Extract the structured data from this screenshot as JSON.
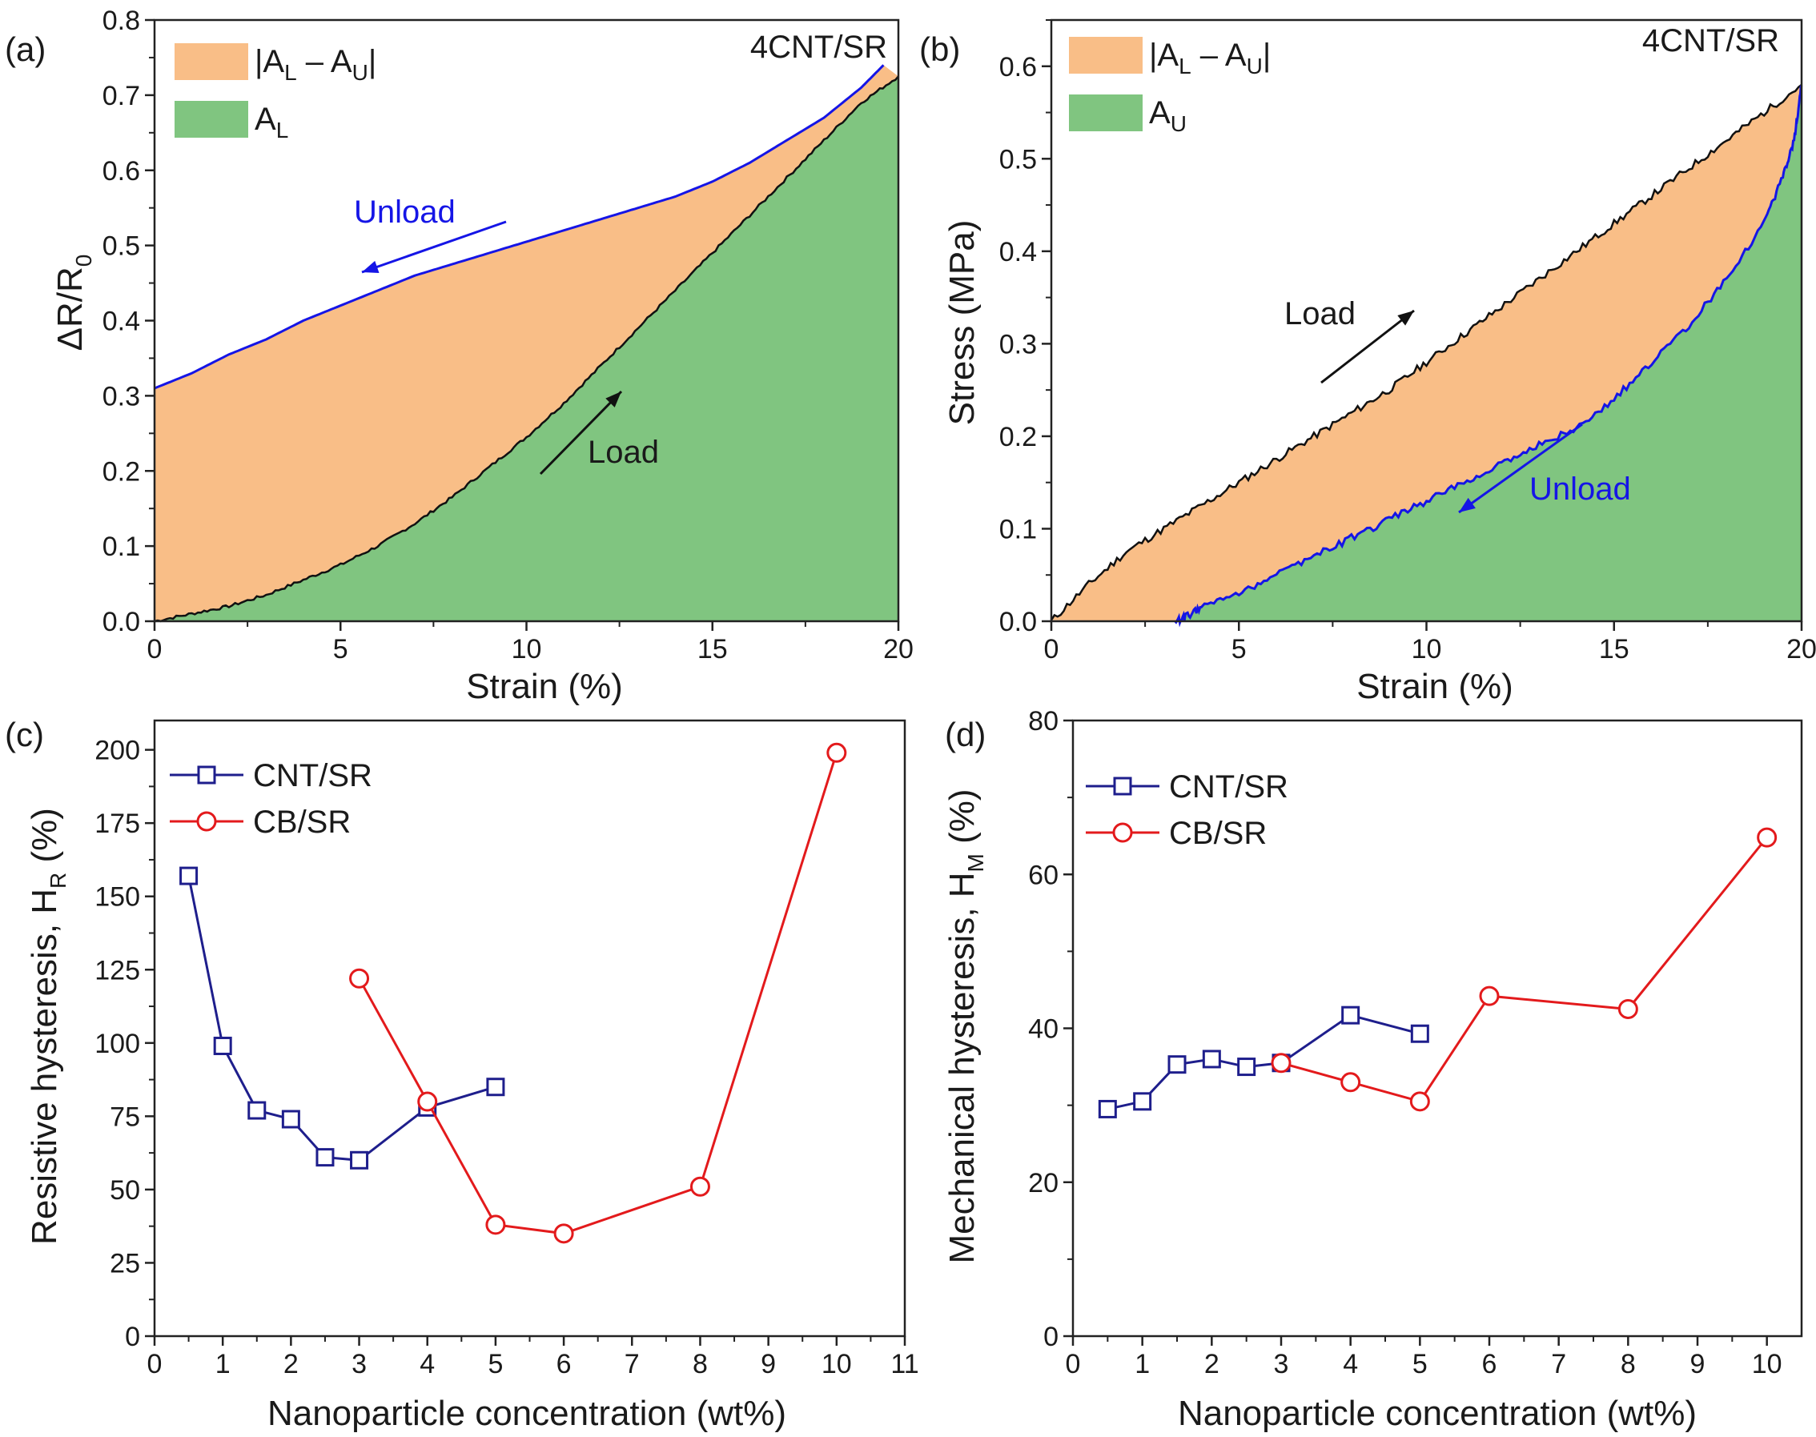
{
  "panels": [
    {
      "id": "a",
      "panel_label": "(a)",
      "sample": "4CNT/SR",
      "legend": [
        {
          "label_main": "|A",
          "label_sub1": "L",
          "label_mid": " – A",
          "label_sub2": "U",
          "label_end": "|",
          "color": "#F9BE87"
        },
        {
          "label_main": "A",
          "label_sub1": "L",
          "color": "#80C580"
        }
      ],
      "annotations": {
        "unload": "Unload",
        "load": "Load",
        "unload_color": "#1515E6",
        "load_color": "#111111"
      },
      "ylabel_main": "ΔR/R",
      "ylabel_sub": "0"
    },
    {
      "id": "b",
      "panel_label": "(b)",
      "sample": "4CNT/SR",
      "legend": [
        {
          "label_main": "|A",
          "label_sub1": "L",
          "label_mid": " – A",
          "label_sub2": "U",
          "label_end": "|",
          "color": "#F9BE87"
        },
        {
          "label_main": "A",
          "label_sub1": "U",
          "color": "#80C580"
        }
      ],
      "annotations": {
        "unload": "Unload",
        "load": "Load",
        "unload_color": "#1515E6",
        "load_color": "#111111"
      },
      "ylabel": "Stress (MPa)"
    },
    {
      "id": "c",
      "panel_label": "(c)",
      "ylabel_main": "Resistive hysteresis, H",
      "ylabel_sub": "R",
      "ylabel_end": " (%)"
    },
    {
      "id": "d",
      "panel_label": "(d)",
      "ylabel_main": "Mechanical hysteresis, H",
      "ylabel_sub": "M",
      "ylabel_end": " (%)"
    }
  ],
  "chart_data": [
    {
      "type": "area",
      "title": "(a) 4CNT/SR",
      "xlabel": "Strain (%)",
      "ylabel": "ΔR/R0",
      "xlim": [
        0,
        20
      ],
      "ylim": [
        0,
        0.8
      ],
      "xticks": [
        0,
        5,
        10,
        15,
        20
      ],
      "yticks": [
        0.0,
        0.1,
        0.2,
        0.3,
        0.4,
        0.5,
        0.6,
        0.7,
        0.8
      ],
      "series": [
        {
          "name": "Load",
          "color": "#111111",
          "x": [
            0,
            1,
            2,
            3,
            4,
            5,
            6,
            7,
            8,
            9,
            10,
            11,
            12,
            13,
            14,
            15,
            16,
            17,
            18,
            19,
            20
          ],
          "y": [
            0,
            0.01,
            0.02,
            0.035,
            0.055,
            0.075,
            0.1,
            0.13,
            0.165,
            0.205,
            0.245,
            0.29,
            0.34,
            0.39,
            0.44,
            0.49,
            0.54,
            0.59,
            0.64,
            0.69,
            0.725
          ]
        },
        {
          "name": "Unload",
          "color": "#1515E6",
          "x": [
            19.6,
            19,
            18,
            17,
            16,
            15,
            14,
            13,
            12,
            11,
            10,
            9,
            8,
            7,
            6,
            5,
            4,
            3,
            2,
            1,
            0
          ],
          "y": [
            0.74,
            0.71,
            0.67,
            0.64,
            0.61,
            0.585,
            0.565,
            0.55,
            0.535,
            0.52,
            0.505,
            0.49,
            0.475,
            0.46,
            0.44,
            0.42,
            0.4,
            0.375,
            0.355,
            0.33,
            0.31
          ]
        }
      ],
      "legend": [
        "|AL – AU|",
        "AL"
      ]
    },
    {
      "type": "area",
      "title": "(b) 4CNT/SR",
      "xlabel": "Strain (%)",
      "ylabel": "Stress (MPa)",
      "xlim": [
        0,
        20
      ],
      "ylim": [
        0,
        0.65
      ],
      "xticks": [
        0,
        5,
        10,
        15,
        20
      ],
      "yticks": [
        0.0,
        0.1,
        0.2,
        0.3,
        0.4,
        0.5,
        0.6
      ],
      "series": [
        {
          "name": "Load",
          "color": "#111111",
          "x": [
            0,
            1,
            2,
            3,
            4,
            5,
            6,
            7,
            8,
            9,
            10,
            11,
            12,
            13,
            14,
            15,
            16,
            17,
            18,
            19,
            20
          ],
          "y": [
            0,
            0.04,
            0.075,
            0.1,
            0.125,
            0.15,
            0.175,
            0.2,
            0.225,
            0.25,
            0.28,
            0.31,
            0.34,
            0.37,
            0.4,
            0.43,
            0.46,
            0.49,
            0.52,
            0.55,
            0.58
          ]
        },
        {
          "name": "Unload",
          "color": "#1515E6",
          "x": [
            20,
            19.8,
            19.5,
            19,
            18,
            17,
            16,
            15,
            14,
            13,
            12,
            11,
            10,
            9,
            8,
            7,
            6,
            5,
            4,
            3.6,
            3.3
          ],
          "y": [
            0.58,
            0.52,
            0.48,
            0.43,
            0.37,
            0.32,
            0.28,
            0.24,
            0.21,
            0.19,
            0.17,
            0.15,
            0.13,
            0.11,
            0.09,
            0.07,
            0.05,
            0.03,
            0.015,
            0.005,
            0
          ]
        }
      ],
      "legend": [
        "|AL – AU|",
        "AU"
      ]
    },
    {
      "type": "line",
      "title": "(c)",
      "xlabel": "Nanoparticle concentration (wt%)",
      "ylabel": "Resistive hysteresis, HR (%)",
      "xlim": [
        0,
        11
      ],
      "ylim": [
        0,
        210
      ],
      "xticks": [
        0,
        1,
        2,
        3,
        4,
        5,
        6,
        7,
        8,
        9,
        10,
        11
      ],
      "yticks": [
        0,
        25,
        50,
        75,
        100,
        125,
        150,
        175,
        200
      ],
      "series": [
        {
          "name": "CNT/SR",
          "marker": "square",
          "color": "#1E1E8C",
          "x": [
            0.5,
            1,
            1.5,
            2,
            2.5,
            3,
            4,
            5
          ],
          "y": [
            157,
            99,
            77,
            74,
            61,
            60,
            78,
            85
          ]
        },
        {
          "name": "CB/SR",
          "marker": "circle",
          "color": "#E31A1C",
          "x": [
            3,
            4,
            5,
            6,
            8,
            10
          ],
          "y": [
            122,
            80,
            38,
            35,
            51,
            199
          ]
        }
      ]
    },
    {
      "type": "line",
      "title": "(d)",
      "xlabel": "Nanoparticle concentration (wt%)",
      "ylabel": "Mechanical hysteresis, HM (%)",
      "xlim": [
        0,
        10.5
      ],
      "ylim": [
        0,
        80
      ],
      "xticks": [
        0,
        1,
        2,
        3,
        4,
        5,
        6,
        7,
        8,
        9,
        10
      ],
      "yticks": [
        0,
        20,
        40,
        60,
        80
      ],
      "series": [
        {
          "name": "CNT/SR",
          "marker": "square",
          "color": "#1E1E8C",
          "x": [
            0.5,
            1,
            1.5,
            2,
            2.5,
            3,
            4,
            5
          ],
          "y": [
            29.5,
            30.5,
            35.3,
            36,
            35,
            35.5,
            41.7,
            39.3
          ]
        },
        {
          "name": "CB/SR",
          "marker": "circle",
          "color": "#E31A1C",
          "x": [
            3,
            4,
            5,
            6,
            8,
            10
          ],
          "y": [
            35.5,
            33,
            30.5,
            44.2,
            42.5,
            64.8
          ]
        }
      ]
    }
  ]
}
